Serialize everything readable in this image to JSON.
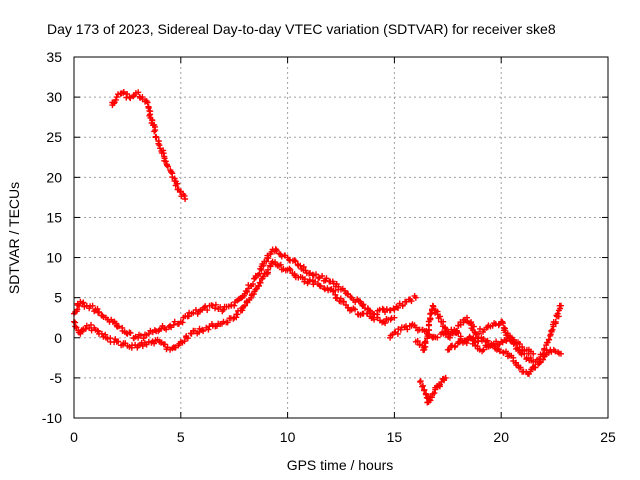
{
  "chart_data": {
    "type": "scatter",
    "title": "Day 173 of 2023, Sidereal Day-to-day VTEC variation (SDTVAR) for receiver ske8",
    "xlabel": "GPS time / hours",
    "ylabel": "SDTVAR / TECUs",
    "xlim": [
      0,
      25
    ],
    "ylim": [
      -10,
      35
    ],
    "xticks": [
      0,
      5,
      10,
      15,
      20,
      25
    ],
    "yticks": [
      -10,
      -5,
      0,
      5,
      10,
      15,
      20,
      25,
      30,
      35
    ],
    "grid": true,
    "marker": "+",
    "color": "#ff0000",
    "series": [
      {
        "name": "main-band-upper",
        "x": [
          0,
          0.3,
          0.6,
          1,
          1.5,
          2,
          2.5,
          3,
          3.5,
          4,
          4.5,
          5,
          5.5,
          6,
          6.5,
          7,
          7.5,
          8,
          8.5,
          9,
          9.3,
          9.6,
          10,
          10.5,
          11,
          11.5,
          12,
          12.5,
          13,
          13.5,
          14,
          14.5,
          15,
          15.5,
          16
        ],
        "y": [
          3,
          4.5,
          4,
          3.5,
          2.5,
          1.5,
          0.5,
          0,
          0.5,
          1,
          1.5,
          2,
          3,
          3.5,
          4,
          3.5,
          4,
          5.5,
          7.5,
          9.5,
          11,
          10.5,
          10,
          9,
          8,
          7.5,
          7,
          6,
          5,
          4,
          3,
          3.5,
          3.5,
          4.5,
          5
        ]
      },
      {
        "name": "main-band-lower",
        "x": [
          0,
          0.3,
          0.6,
          1,
          1.5,
          2,
          2.5,
          3,
          3.5,
          4,
          4.5,
          5,
          5.5,
          6,
          6.5,
          7,
          7.5,
          8,
          8.5,
          9,
          9.3,
          9.6,
          10,
          10.5,
          11,
          11.5,
          12,
          12.5,
          13,
          13.5,
          14,
          14.5,
          15
        ],
        "y": [
          2,
          0.5,
          1.5,
          1,
          0,
          -0.5,
          -1,
          -1,
          -0.5,
          -0.5,
          -1.5,
          -0.5,
          0.5,
          1,
          1.5,
          2,
          2.5,
          4,
          6,
          8,
          9.5,
          9,
          8.5,
          7.5,
          7,
          6.5,
          6,
          4.5,
          3.5,
          3,
          2.5,
          2,
          2.5
        ]
      },
      {
        "name": "early-high",
        "x": [
          1.8,
          2,
          2.3,
          2.6,
          2.9,
          3.2,
          3.4,
          3.7,
          4,
          4.3,
          4.6,
          4.9,
          5.2
        ],
        "y": [
          29,
          30,
          30.5,
          30,
          30.5,
          30,
          29.5,
          26.5,
          24,
          22,
          20.5,
          18.5,
          17.3
        ]
      },
      {
        "name": "afternoon-a",
        "x": [
          14.8,
          15.3,
          15.8,
          16.3,
          16.8,
          17.3,
          17.8,
          18.3,
          18.8,
          19.3,
          19.8,
          20.3,
          20.8,
          21.3,
          21.8,
          22.3,
          22.8
        ],
        "y": [
          0,
          1,
          1.5,
          1,
          0,
          0.5,
          1,
          -0.5,
          0,
          -0.5,
          -1.5,
          -2,
          -3.5,
          -4.5,
          -3,
          -1.5,
          -2
        ]
      },
      {
        "name": "afternoon-b",
        "x": [
          16,
          16.4,
          16.8,
          17.2,
          17.6,
          18,
          18.4,
          18.8,
          19.2,
          19.6,
          20,
          20.4,
          20.8,
          21.2,
          21.6,
          22,
          22.4,
          22.8
        ],
        "y": [
          -0.5,
          -1.5,
          4,
          2,
          0,
          1.5,
          2.5,
          0.5,
          1,
          1.5,
          2,
          0,
          -1.5,
          -2.5,
          -3,
          -2,
          1,
          4
        ]
      },
      {
        "name": "afternoon-c",
        "x": [
          17.5,
          18,
          18.5,
          19,
          19.5,
          20,
          20.5,
          21,
          21.5
        ],
        "y": [
          -1.5,
          -0.5,
          0,
          -1.5,
          -1,
          -0.5,
          0,
          -1.5,
          -2
        ]
      },
      {
        "name": "late-low",
        "x": [
          16.2,
          16.4,
          16.6,
          16.8,
          17,
          17.2,
          17.4
        ],
        "y": [
          -5.5,
          -6.5,
          -8,
          -7,
          -6,
          -5.5,
          -5
        ]
      }
    ]
  }
}
